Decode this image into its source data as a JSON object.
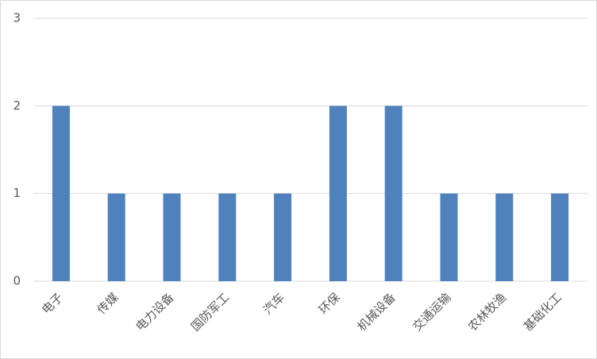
{
  "chart_data": {
    "type": "bar",
    "categories": [
      "电子",
      "传媒",
      "电力设备",
      "国防军工",
      "汽车",
      "环保",
      "机械设备",
      "交通运输",
      "农林牧渔",
      "基础化工"
    ],
    "values": [
      2,
      1,
      1,
      1,
      1,
      2,
      2,
      1,
      1,
      1
    ],
    "color": "#4f81bd",
    "ylim": [
      0,
      3
    ],
    "yticks": [
      0,
      1,
      2,
      3
    ],
    "grid": true
  }
}
